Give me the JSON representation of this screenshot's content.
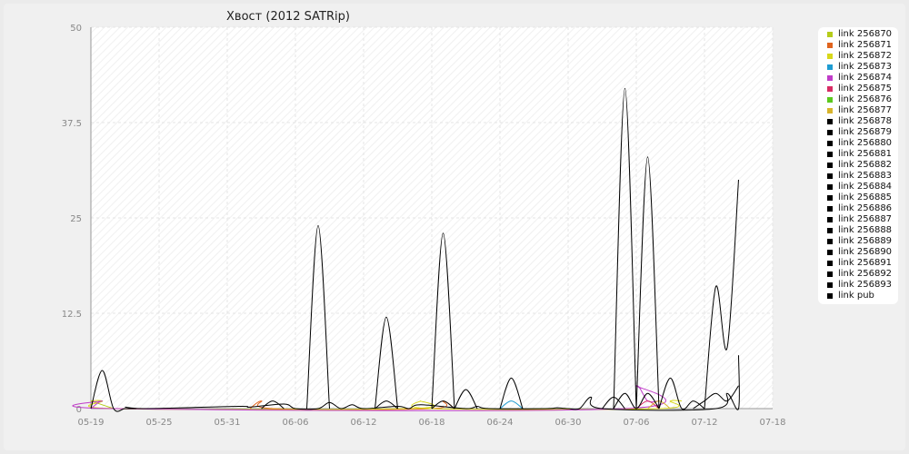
{
  "chart_data": {
    "type": "line",
    "title": "Хвост (2012 SATRip)",
    "xlabel": "",
    "ylabel": "",
    "ylim": [
      0,
      50
    ],
    "yticks": [
      "0",
      "12.5",
      "25",
      "37.5",
      "50"
    ],
    "xticks": [
      "05-19",
      "05-25",
      "05-31",
      "06-06",
      "06-12",
      "06-18",
      "06-24",
      "06-30",
      "07-06",
      "07-12",
      "07-18"
    ],
    "x_start": "05-19",
    "x_end": "07-18",
    "grid": true,
    "legend_position": "right",
    "series": [
      {
        "name": "link 256870",
        "color": "#b5cc1a",
        "points": [
          [
            0,
            1
          ],
          [
            2,
            0
          ]
        ]
      },
      {
        "name": "link 256871",
        "color": "#e0641e",
        "points": [
          [
            14,
            0
          ],
          [
            15,
            1
          ],
          [
            16,
            0
          ],
          [
            30,
            0
          ],
          [
            31,
            1
          ],
          [
            32,
            0
          ]
        ]
      },
      {
        "name": "link 256872",
        "color": "#d8d81a",
        "points": [
          [
            0,
            1
          ],
          [
            1,
            1
          ],
          [
            2,
            0
          ],
          [
            28,
            0
          ],
          [
            29,
            1
          ],
          [
            30,
            0
          ],
          [
            50,
            0
          ],
          [
            51,
            1
          ],
          [
            52,
            1
          ]
        ]
      },
      {
        "name": "link 256873",
        "color": "#1e9cd2",
        "points": [
          [
            36,
            0
          ],
          [
            37,
            1
          ],
          [
            38,
            0
          ]
        ]
      },
      {
        "name": "link 256874",
        "color": "#c03cc8",
        "points": [
          [
            0,
            0
          ],
          [
            1,
            1
          ],
          [
            2,
            0
          ],
          [
            47,
            0
          ],
          [
            48,
            3
          ],
          [
            49,
            1
          ],
          [
            50,
            1
          ]
        ]
      },
      {
        "name": "link 256875",
        "color": "#d82c64",
        "points": [
          [
            48,
            0
          ],
          [
            49,
            1
          ],
          [
            50,
            0
          ]
        ]
      },
      {
        "name": "link 256876",
        "color": "#5cc81e",
        "points": []
      },
      {
        "name": "link 256877",
        "color": "#d8b42c",
        "points": [
          [
            49,
            0
          ],
          [
            50,
            1
          ],
          [
            51,
            0
          ]
        ]
      },
      {
        "name": "link 256878",
        "color": "#000000",
        "points": [
          [
            0,
            0
          ],
          [
            1,
            5
          ],
          [
            2,
            0
          ],
          [
            3,
            0
          ],
          [
            4,
            0
          ]
        ]
      },
      {
        "name": "link 256879",
        "color": "#000000",
        "points": [
          [
            15,
            0
          ],
          [
            16,
            1
          ],
          [
            17,
            0
          ]
        ]
      },
      {
        "name": "link 256880",
        "color": "#000000",
        "points": [
          [
            19,
            0
          ],
          [
            20,
            24
          ],
          [
            21,
            0
          ]
        ]
      },
      {
        "name": "link 256881",
        "color": "#000000",
        "points": [
          [
            25,
            0
          ],
          [
            26,
            12
          ],
          [
            27,
            0
          ]
        ]
      },
      {
        "name": "link 256882",
        "color": "#000000",
        "points": [
          [
            25,
            0
          ],
          [
            26,
            1
          ],
          [
            27,
            0
          ]
        ]
      },
      {
        "name": "link 256883",
        "color": "#000000",
        "points": [
          [
            30,
            0
          ],
          [
            31,
            23
          ],
          [
            32,
            0
          ]
        ]
      },
      {
        "name": "link 256884",
        "color": "#000000",
        "points": [
          [
            30,
            0
          ],
          [
            31,
            1
          ],
          [
            32,
            0
          ]
        ]
      },
      {
        "name": "link 256885",
        "color": "#000000",
        "points": [
          [
            32,
            0
          ],
          [
            33,
            2.5
          ],
          [
            34,
            0
          ]
        ]
      },
      {
        "name": "link 256886",
        "color": "#000000",
        "points": [
          [
            36,
            0
          ],
          [
            37,
            4
          ],
          [
            38,
            0
          ]
        ]
      },
      {
        "name": "link 256887",
        "color": "#000000",
        "points": [
          [
            45,
            0
          ],
          [
            46,
            1.5
          ],
          [
            47,
            0
          ]
        ]
      },
      {
        "name": "link 256888",
        "color": "#000000",
        "points": [
          [
            46,
            0
          ],
          [
            47,
            42
          ],
          [
            48,
            0
          ]
        ]
      },
      {
        "name": "link 256889",
        "color": "#000000",
        "points": [
          [
            46,
            0
          ],
          [
            47,
            2
          ],
          [
            48,
            0
          ],
          [
            49,
            2
          ],
          [
            50,
            0
          ]
        ]
      },
      {
        "name": "link 256890",
        "color": "#000000",
        "points": [
          [
            48,
            0
          ],
          [
            49,
            33
          ],
          [
            50,
            0
          ]
        ]
      },
      {
        "name": "link 256891",
        "color": "#000000",
        "points": [
          [
            50,
            0
          ],
          [
            51,
            4
          ],
          [
            52,
            0
          ],
          [
            53,
            1
          ],
          [
            54,
            0
          ]
        ]
      },
      {
        "name": "link 256892",
        "color": "#000000",
        "points": [
          [
            54,
            0
          ],
          [
            55,
            16
          ],
          [
            56,
            8
          ],
          [
            57,
            30
          ]
        ]
      },
      {
        "name": "link 256893",
        "color": "#000000",
        "points": [
          [
            53,
            0
          ],
          [
            54,
            1
          ],
          [
            55,
            2
          ],
          [
            56,
            1
          ],
          [
            57,
            3
          ]
        ]
      },
      {
        "name": "link pub",
        "color": "#000000",
        "points": [
          [
            3,
            0.2
          ],
          [
            5,
            0
          ],
          [
            13,
            0.3
          ],
          [
            14,
            0.2
          ],
          [
            17,
            0.6
          ],
          [
            18,
            0
          ],
          [
            20,
            0
          ],
          [
            21,
            0.8
          ],
          [
            22,
            0
          ],
          [
            23,
            0.5
          ],
          [
            24,
            0
          ],
          [
            27,
            0.3
          ],
          [
            28,
            0
          ],
          [
            29,
            0.5
          ],
          [
            33,
            0
          ],
          [
            34,
            0.3
          ],
          [
            35,
            0
          ],
          [
            40,
            0
          ],
          [
            41,
            0.1
          ],
          [
            42,
            0
          ],
          [
            43,
            0
          ],
          [
            44,
            1.5
          ],
          [
            45,
            0
          ],
          [
            55,
            0
          ],
          [
            56,
            2
          ],
          [
            57,
            0
          ],
          [
            57,
            7
          ]
        ]
      }
    ]
  }
}
